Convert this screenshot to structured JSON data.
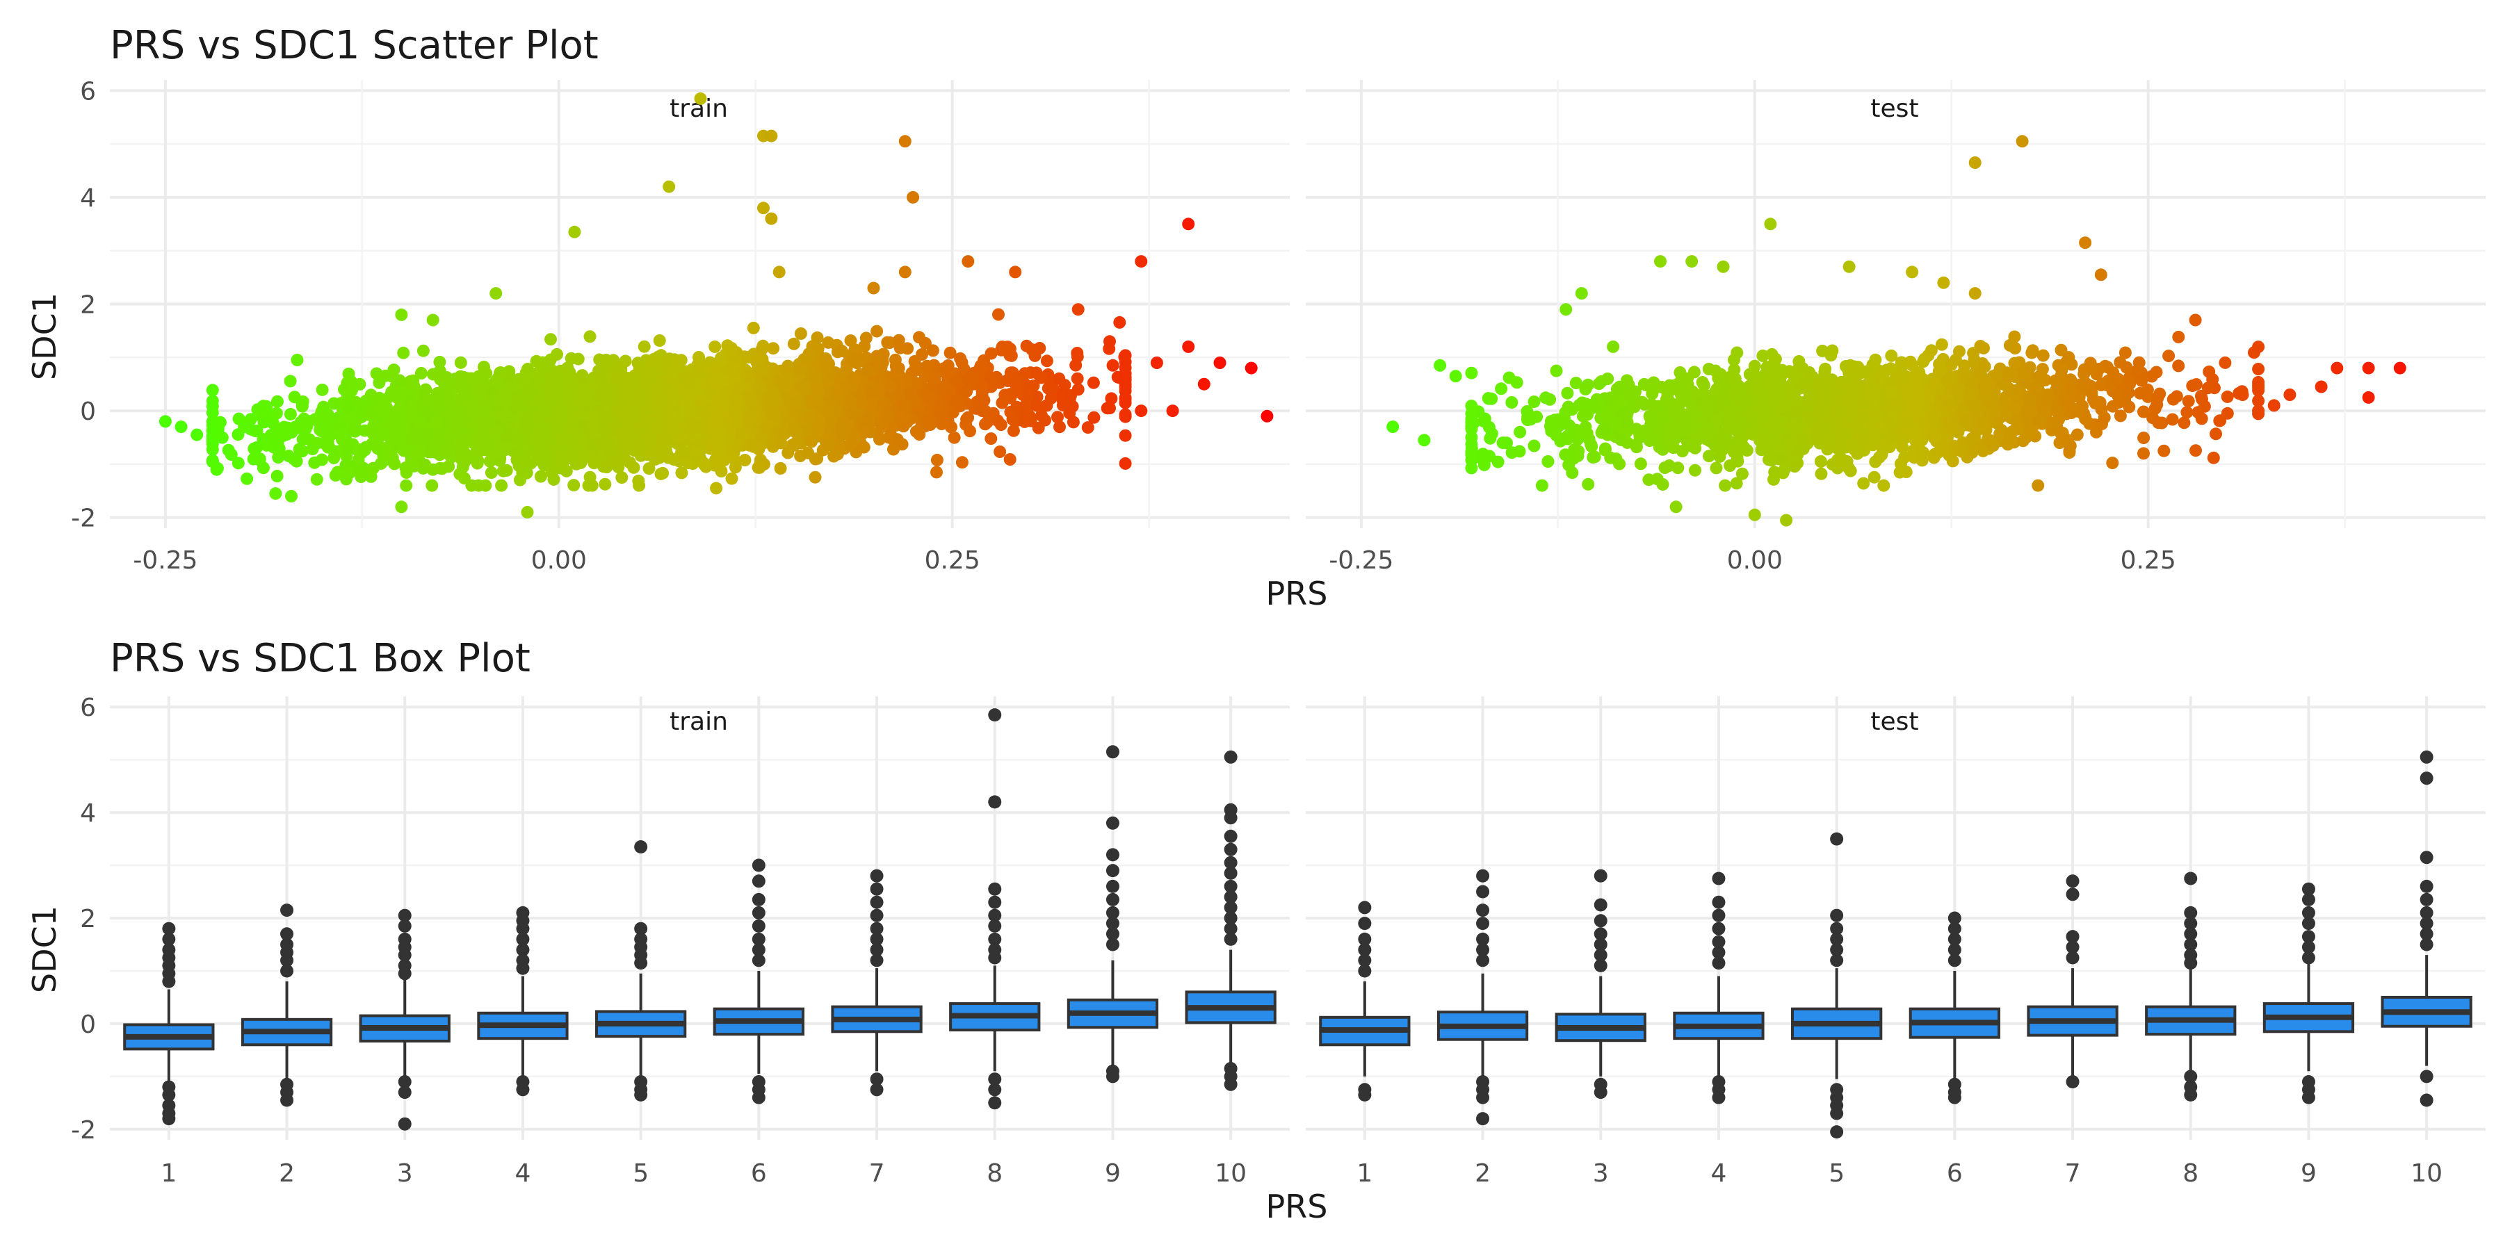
{
  "colors": {
    "low": "#4cff00",
    "mid": "#c2b800",
    "high": "#ff0000",
    "box_fill": "#2a8cea",
    "box_line": "#333333",
    "outlier": "#333333"
  },
  "chart_data": [
    {
      "type": "scatter",
      "title": "PRS vs SDC1 Scatter Plot",
      "xlabel": "PRS",
      "ylabel": "SDC1",
      "xlim": [
        -0.28,
        0.46
      ],
      "ylim": [
        -2.2,
        6.2
      ],
      "x_ticks": [
        -0.25,
        0.0,
        0.25
      ],
      "x_tick_labels": [
        "-0.25",
        "0.00",
        "0.25"
      ],
      "y_ticks": [
        -2,
        0,
        2,
        4,
        6
      ],
      "y_tick_labels": [
        "-2",
        "0",
        "2",
        "4",
        "6"
      ],
      "grid": true,
      "color_encoding": "gradient from green (low PRS) through olive to red (high PRS)",
      "panels": [
        {
          "name": "train",
          "bulk": {
            "x_center": 0.06,
            "x_spread": 0.11,
            "x_min": -0.22,
            "x_max": 0.36,
            "slope": 1.6,
            "y_spread": 0.45,
            "count": 4000
          },
          "points": [
            [
              -0.25,
              -0.2
            ],
            [
              -0.24,
              -0.3
            ],
            [
              -0.23,
              -0.45
            ],
            [
              -0.22,
              -0.2
            ],
            [
              -0.2,
              -0.3
            ],
            [
              -0.19,
              -0.9
            ],
            [
              -0.18,
              -1.55
            ],
            [
              -0.17,
              -1.6
            ],
            [
              -0.1,
              1.8
            ],
            [
              -0.08,
              1.7
            ],
            [
              -0.1,
              -1.8
            ],
            [
              -0.04,
              2.2
            ],
            [
              -0.02,
              -1.9
            ],
            [
              0.01,
              3.35
            ],
            [
              0.07,
              4.2
            ],
            [
              0.09,
              5.85
            ],
            [
              0.13,
              5.15
            ],
            [
              0.135,
              5.15
            ],
            [
              0.13,
              3.8
            ],
            [
              0.135,
              3.6
            ],
            [
              0.14,
              2.6
            ],
            [
              0.22,
              5.05
            ],
            [
              0.225,
              4.0
            ],
            [
              0.22,
              2.6
            ],
            [
              0.26,
              2.8
            ],
            [
              0.29,
              2.6
            ],
            [
              0.33,
              1.9
            ],
            [
              0.35,
              1.3
            ],
            [
              0.37,
              2.8
            ],
            [
              0.4,
              3.5
            ],
            [
              0.38,
              0.9
            ],
            [
              0.4,
              1.2
            ],
            [
              0.42,
              0.9
            ],
            [
              0.44,
              0.8
            ],
            [
              0.37,
              0.0
            ],
            [
              0.39,
              0.0
            ],
            [
              0.35,
              0.05
            ],
            [
              0.45,
              -0.1
            ],
            [
              0.41,
              0.5
            ],
            [
              0.24,
              -1.15
            ],
            [
              0.1,
              -1.45
            ],
            [
              0.04,
              -1.25
            ],
            [
              0.33,
              0.4
            ],
            [
              0.31,
              0.1
            ],
            [
              0.2,
              2.3
            ]
          ]
        },
        {
          "name": "test",
          "bulk": {
            "x_center": 0.06,
            "x_spread": 0.1,
            "x_min": -0.18,
            "x_max": 0.32,
            "slope": 1.6,
            "y_spread": 0.45,
            "count": 1800
          },
          "points": [
            [
              -0.23,
              -0.3
            ],
            [
              -0.21,
              -0.55
            ],
            [
              -0.2,
              0.85
            ],
            [
              -0.19,
              0.65
            ],
            [
              -0.18,
              -0.8
            ],
            [
              -0.16,
              -0.6
            ],
            [
              -0.12,
              1.9
            ],
            [
              -0.11,
              2.2
            ],
            [
              -0.09,
              1.2
            ],
            [
              -0.06,
              2.8
            ],
            [
              -0.04,
              2.8
            ],
            [
              -0.02,
              2.7
            ],
            [
              0.01,
              3.5
            ],
            [
              -0.05,
              -1.8
            ],
            [
              0.0,
              -1.95
            ],
            [
              0.02,
              -2.05
            ],
            [
              0.14,
              4.65
            ],
            [
              0.17,
              5.05
            ],
            [
              0.21,
              3.15
            ],
            [
              0.22,
              2.55
            ],
            [
              0.28,
              1.7
            ],
            [
              0.14,
              2.2
            ],
            [
              0.12,
              2.4
            ],
            [
              0.26,
              -0.75
            ],
            [
              0.18,
              -1.4
            ],
            [
              0.34,
              0.3
            ],
            [
              0.36,
              0.45
            ],
            [
              0.37,
              0.8
            ],
            [
              0.39,
              0.25
            ],
            [
              0.39,
              0.8
            ],
            [
              0.41,
              0.8
            ],
            [
              0.31,
              0.3
            ],
            [
              0.32,
              0.0
            ],
            [
              0.33,
              0.1
            ],
            [
              0.2,
              -0.75
            ],
            [
              0.1,
              2.6
            ],
            [
              0.06,
              2.7
            ]
          ]
        }
      ]
    },
    {
      "type": "box",
      "title": "PRS vs SDC1 Box Plot",
      "xlabel": "PRS",
      "ylabel": "SDC1",
      "categories": [
        "1",
        "2",
        "3",
        "4",
        "5",
        "6",
        "7",
        "8",
        "9",
        "10"
      ],
      "ylim": [
        -2.2,
        6.2
      ],
      "y_ticks": [
        -2,
        0,
        2,
        4,
        6
      ],
      "y_tick_labels": [
        "-2",
        "0",
        "2",
        "4",
        "6"
      ],
      "grid": true,
      "panels": [
        {
          "name": "train",
          "boxes": [
            {
              "q1": -0.48,
              "median": -0.25,
              "q3": -0.02,
              "lower": -1.15,
              "upper": 0.65,
              "outliers": [
                1.8,
                1.6,
                1.4,
                1.25,
                1.1,
                0.95,
                0.8,
                -1.2,
                -1.35,
                -1.55,
                -1.7,
                -1.8
              ]
            },
            {
              "q1": -0.4,
              "median": -0.15,
              "q3": 0.08,
              "lower": -1.05,
              "upper": 0.8,
              "outliers": [
                2.15,
                1.7,
                1.5,
                1.35,
                1.2,
                1.0,
                -1.15,
                -1.3,
                -1.45
              ]
            },
            {
              "q1": -0.33,
              "median": -0.08,
              "q3": 0.15,
              "lower": -1.0,
              "upper": 0.85,
              "outliers": [
                2.05,
                1.85,
                1.6,
                1.45,
                1.3,
                1.1,
                0.95,
                -1.1,
                -1.3,
                -1.9
              ]
            },
            {
              "q1": -0.28,
              "median": -0.03,
              "q3": 0.2,
              "lower": -1.0,
              "upper": 0.9,
              "outliers": [
                2.1,
                1.95,
                1.8,
                1.6,
                1.4,
                1.2,
                1.05,
                -1.1,
                -1.25
              ]
            },
            {
              "q1": -0.24,
              "median": 0.0,
              "q3": 0.23,
              "lower": -1.0,
              "upper": 0.95,
              "outliers": [
                3.35,
                1.8,
                1.6,
                1.45,
                1.3,
                1.15,
                -1.1,
                -1.25,
                -1.35
              ]
            },
            {
              "q1": -0.2,
              "median": 0.05,
              "q3": 0.28,
              "lower": -0.95,
              "upper": 1.0,
              "outliers": [
                3.0,
                2.7,
                2.35,
                2.1,
                1.85,
                1.6,
                1.4,
                1.2,
                -1.1,
                -1.25,
                -1.4
              ]
            },
            {
              "q1": -0.15,
              "median": 0.08,
              "q3": 0.32,
              "lower": -0.9,
              "upper": 1.05,
              "outliers": [
                2.8,
                2.55,
                2.3,
                2.05,
                1.8,
                1.6,
                1.4,
                1.2,
                -1.05,
                -1.25
              ]
            },
            {
              "q1": -0.12,
              "median": 0.15,
              "q3": 0.38,
              "lower": -0.9,
              "upper": 1.1,
              "outliers": [
                5.85,
                4.2,
                2.55,
                2.3,
                2.05,
                1.85,
                1.6,
                1.4,
                1.25,
                -1.05,
                -1.25,
                -1.5
              ]
            },
            {
              "q1": -0.07,
              "median": 0.2,
              "q3": 0.45,
              "lower": -0.85,
              "upper": 1.2,
              "outliers": [
                5.15,
                3.8,
                3.2,
                2.9,
                2.6,
                2.35,
                2.1,
                1.9,
                1.7,
                1.5,
                -0.9,
                -1.0
              ]
            },
            {
              "q1": 0.02,
              "median": 0.3,
              "q3": 0.6,
              "lower": -0.75,
              "upper": 1.4,
              "outliers": [
                5.05,
                4.05,
                3.9,
                3.55,
                3.3,
                3.05,
                2.85,
                2.6,
                2.4,
                2.2,
                2.0,
                1.8,
                1.6,
                -0.85,
                -1.0,
                -1.15
              ]
            }
          ]
        },
        {
          "name": "test",
          "boxes": [
            {
              "q1": -0.4,
              "median": -0.12,
              "q3": 0.12,
              "lower": -1.0,
              "upper": 0.8,
              "outliers": [
                2.2,
                1.9,
                1.6,
                1.4,
                1.2,
                1.0,
                -1.25,
                -1.35
              ]
            },
            {
              "q1": -0.3,
              "median": -0.05,
              "q3": 0.22,
              "lower": -1.0,
              "upper": 0.95,
              "outliers": [
                2.8,
                2.5,
                2.15,
                1.9,
                1.6,
                1.4,
                1.2,
                -1.1,
                -1.25,
                -1.4,
                -1.8
              ]
            },
            {
              "q1": -0.32,
              "median": -0.08,
              "q3": 0.18,
              "lower": -1.0,
              "upper": 0.9,
              "outliers": [
                2.8,
                2.25,
                1.95,
                1.7,
                1.5,
                1.3,
                1.1,
                -1.15,
                -1.3
              ]
            },
            {
              "q1": -0.28,
              "median": -0.05,
              "q3": 0.2,
              "lower": -1.0,
              "upper": 0.9,
              "outliers": [
                2.75,
                2.3,
                2.05,
                1.8,
                1.55,
                1.35,
                1.15,
                -1.1,
                -1.25,
                -1.4
              ]
            },
            {
              "q1": -0.28,
              "median": 0.0,
              "q3": 0.28,
              "lower": -1.05,
              "upper": 1.05,
              "outliers": [
                3.5,
                2.05,
                1.8,
                1.6,
                1.4,
                1.2,
                -1.25,
                -1.4,
                -1.55,
                -1.7,
                -2.05
              ]
            },
            {
              "q1": -0.26,
              "median": 0.02,
              "q3": 0.28,
              "lower": -1.05,
              "upper": 1.0,
              "outliers": [
                2.0,
                1.8,
                1.6,
                1.4,
                1.2,
                -1.15,
                -1.3,
                -1.4
              ]
            },
            {
              "q1": -0.22,
              "median": 0.05,
              "q3": 0.32,
              "lower": -1.0,
              "upper": 1.05,
              "outliers": [
                2.7,
                2.45,
                1.65,
                1.45,
                1.25,
                -1.1
              ]
            },
            {
              "q1": -0.2,
              "median": 0.07,
              "q3": 0.32,
              "lower": -0.9,
              "upper": 1.05,
              "outliers": [
                2.75,
                2.1,
                1.9,
                1.7,
                1.5,
                1.3,
                1.15,
                -1.0,
                -1.2,
                -1.35
              ]
            },
            {
              "q1": -0.15,
              "median": 0.12,
              "q3": 0.38,
              "lower": -0.9,
              "upper": 1.15,
              "outliers": [
                2.55,
                2.35,
                2.1,
                1.9,
                1.65,
                1.45,
                1.25,
                -1.1,
                -1.25,
                -1.4
              ]
            },
            {
              "q1": -0.05,
              "median": 0.22,
              "q3": 0.5,
              "lower": -0.8,
              "upper": 1.3,
              "outliers": [
                5.05,
                4.65,
                3.15,
                2.6,
                2.35,
                2.1,
                1.9,
                1.7,
                1.5,
                -1.0,
                -1.45
              ]
            }
          ]
        }
      ]
    }
  ]
}
